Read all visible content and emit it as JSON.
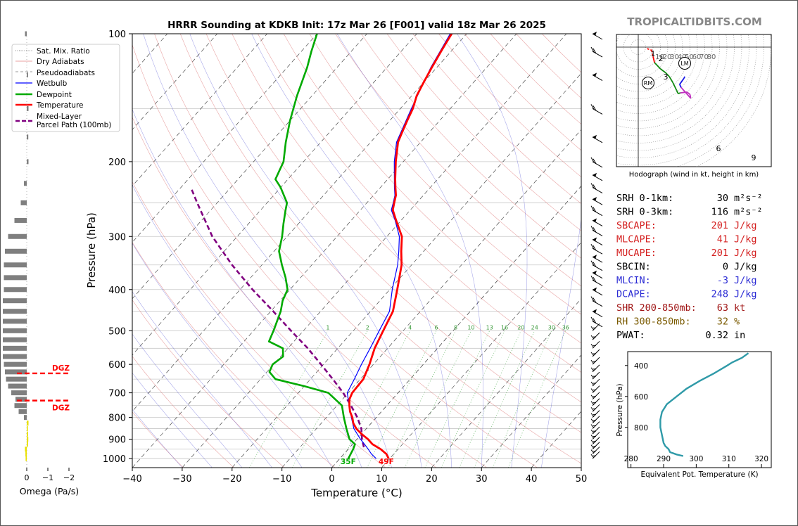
{
  "title": "HRRR Sounding at KDKB Init: 17z Mar 26 [F001] valid 18z Mar 26 2025",
  "brand": "TROPICALTIDBITS.COM",
  "colors": {
    "temp": "#ff0000",
    "dew": "#00aa00",
    "wetbulb": "#0000ff",
    "parcel": "#800080",
    "brand": "#888888"
  },
  "chart_data": {
    "type": "line",
    "subtype": "skew-T log-P sounding",
    "xlabel": "Temperature (°C)",
    "ylabel": "Pressure (hPa)",
    "xlim": [
      -40,
      50
    ],
    "ylim": [
      1050,
      100
    ],
    "x_ticks": [
      "−40",
      "−30",
      "−20",
      "−10",
      "0",
      "10",
      "20",
      "30",
      "40",
      "50"
    ],
    "y_ticks": [
      "100",
      "200",
      "300",
      "400",
      "500",
      "600",
      "700",
      "800",
      "900",
      "1000"
    ],
    "legend": {
      "position": "top-left",
      "entries": [
        "Sat. Mix. Ratio",
        "Dry Adiabats",
        "Pseudoadiabats",
        "Wetbulb",
        "Dewpoint",
        "Temperature",
        "Mixed-Layer\nParcel Path (100mb)"
      ]
    },
    "mixing_ratio_labels": [
      "1",
      "2",
      "4",
      "6",
      "8",
      "10",
      "13",
      "16",
      "20",
      "24",
      "30",
      "36"
    ],
    "surface_labels": {
      "dewpoint": "35F",
      "temperature": "49F"
    },
    "series": [
      {
        "name": "Temperature",
        "points": [
          [
            1000,
            9.8
          ],
          [
            975,
            8.5
          ],
          [
            950,
            6.5
          ],
          [
            925,
            4
          ],
          [
            900,
            2.2
          ],
          [
            875,
            0
          ],
          [
            850,
            -2
          ],
          [
            825,
            -3.6
          ],
          [
            800,
            -4.8
          ],
          [
            775,
            -6.3
          ],
          [
            750,
            -7.5
          ],
          [
            725,
            -8.6
          ],
          [
            700,
            -9.2
          ],
          [
            675,
            -9.3
          ],
          [
            650,
            -9.4
          ],
          [
            600,
            -10.8
          ],
          [
            550,
            -12.6
          ],
          [
            500,
            -14
          ],
          [
            450,
            -15.5
          ],
          [
            400,
            -18.5
          ],
          [
            350,
            -22
          ],
          [
            325,
            -24.5
          ],
          [
            300,
            -27
          ],
          [
            275,
            -31
          ],
          [
            260,
            -33.5
          ],
          [
            250,
            -34.5
          ],
          [
            240,
            -35.5
          ],
          [
            230,
            -37
          ],
          [
            220,
            -38.5
          ],
          [
            200,
            -41.5
          ],
          [
            180,
            -44.5
          ],
          [
            170,
            -45.5
          ],
          [
            160,
            -46.5
          ],
          [
            150,
            -47.5
          ],
          [
            140,
            -49
          ],
          [
            130,
            -50
          ],
          [
            120,
            -51
          ],
          [
            110,
            -52
          ],
          [
            105,
            -52.5
          ],
          [
            100,
            -53
          ]
        ]
      },
      {
        "name": "Dewpoint",
        "points": [
          [
            1000,
            1.7
          ],
          [
            985,
            1.5
          ],
          [
            950,
            1
          ],
          [
            925,
            0.5
          ],
          [
            900,
            -1.5
          ],
          [
            850,
            -4
          ],
          [
            800,
            -6.5
          ],
          [
            750,
            -9
          ],
          [
            700,
            -14
          ],
          [
            675,
            -20
          ],
          [
            650,
            -27
          ],
          [
            625,
            -29.5
          ],
          [
            600,
            -30.2
          ],
          [
            575,
            -29.5
          ],
          [
            550,
            -31
          ],
          [
            530,
            -35
          ],
          [
            500,
            -36
          ],
          [
            450,
            -38
          ],
          [
            425,
            -39.5
          ],
          [
            400,
            -40.5
          ],
          [
            375,
            -43
          ],
          [
            350,
            -46
          ],
          [
            325,
            -49
          ],
          [
            300,
            -51
          ],
          [
            280,
            -53
          ],
          [
            260,
            -55
          ],
          [
            250,
            -56
          ],
          [
            230,
            -60
          ],
          [
            220,
            -62.5
          ],
          [
            200,
            -64
          ],
          [
            180,
            -67
          ],
          [
            160,
            -70
          ],
          [
            140,
            -73
          ],
          [
            120,
            -76
          ],
          [
            110,
            -78
          ],
          [
            100,
            -80
          ]
        ]
      },
      {
        "name": "Wetbulb",
        "points": [
          [
            1000,
            7.3
          ],
          [
            975,
            5.5
          ],
          [
            950,
            4
          ],
          [
            925,
            2.4
          ],
          [
            900,
            0.7
          ],
          [
            850,
            -2.5
          ],
          [
            800,
            -5
          ],
          [
            750,
            -7.5
          ],
          [
            700,
            -10.2
          ],
          [
            650,
            -11.2
          ],
          [
            600,
            -12.4
          ],
          [
            550,
            -13.5
          ],
          [
            500,
            -14.8
          ],
          [
            450,
            -16.2
          ],
          [
            400,
            -19.5
          ],
          [
            350,
            -22.8
          ],
          [
            325,
            -25
          ],
          [
            300,
            -27.5
          ],
          [
            275,
            -31.2
          ],
          [
            260,
            -33.8
          ],
          [
            250,
            -34.7
          ],
          [
            240,
            -35.7
          ],
          [
            230,
            -37.2
          ],
          [
            200,
            -41.8
          ],
          [
            180,
            -44.8
          ],
          [
            150,
            -47.8
          ],
          [
            120,
            -51.2
          ],
          [
            100,
            -53.3
          ]
        ]
      },
      {
        "name": "Mixed-Layer Parcel Path (100mb)",
        "points": [
          [
            940,
            2.8
          ],
          [
            900,
            1
          ],
          [
            850,
            -1
          ],
          [
            800,
            -3.8
          ],
          [
            750,
            -7.2
          ],
          [
            700,
            -11
          ],
          [
            650,
            -15.5
          ],
          [
            600,
            -20.5
          ],
          [
            550,
            -26
          ],
          [
            500,
            -32.5
          ],
          [
            450,
            -39.5
          ],
          [
            400,
            -47.5
          ],
          [
            350,
            -56
          ],
          [
            300,
            -65
          ],
          [
            250,
            -74
          ],
          [
            230,
            -78
          ]
        ]
      }
    ],
    "omega_panel": {
      "xlabel": "Omega (Pa/s)",
      "x_ticks": [
        "0",
        "−1",
        "−2"
      ],
      "dgz_labels": [
        "DGZ",
        "DGZ"
      ],
      "dgz_bounds_hpa": [
        630,
        730
      ],
      "bars": [
        [
          1000,
          0.02
        ],
        [
          975,
          0.03
        ],
        [
          950,
          0.05
        ],
        [
          925,
          -0.03
        ],
        [
          900,
          -0.04
        ],
        [
          875,
          -0.03
        ],
        [
          850,
          -0.02
        ],
        [
          825,
          -0.05
        ],
        [
          800,
          0.1
        ],
        [
          775,
          0.35
        ],
        [
          750,
          0.55
        ],
        [
          725,
          0.5
        ],
        [
          700,
          0.7
        ],
        [
          675,
          0.85
        ],
        [
          650,
          0.95
        ],
        [
          625,
          1.0
        ],
        [
          600,
          1.05
        ],
        [
          575,
          1.1
        ],
        [
          550,
          1.1
        ],
        [
          525,
          1.1
        ],
        [
          500,
          1.1
        ],
        [
          475,
          1.1
        ],
        [
          450,
          1.1
        ],
        [
          425,
          1.1
        ],
        [
          400,
          1.05
        ],
        [
          375,
          1.05
        ],
        [
          350,
          1.05
        ],
        [
          325,
          1.0
        ],
        [
          300,
          0.85
        ],
        [
          275,
          0.55
        ],
        [
          250,
          0.25
        ],
        [
          225,
          0.1
        ],
        [
          200,
          -0.05
        ],
        [
          175,
          -0.04
        ],
        [
          150,
          -0.05
        ],
        [
          125,
          -0.03
        ],
        [
          100,
          0.05
        ]
      ]
    },
    "hodograph": {
      "caption": "Hodograph (wind in kt, height in km)",
      "ring_labels": [
        "10",
        "20",
        "30",
        "40",
        "50",
        "60",
        "70",
        "80"
      ],
      "markers": [
        "RM",
        "LM"
      ],
      "height_labels": [
        "1",
        "2",
        "3",
        "6",
        "9"
      ],
      "path": [
        [
          12,
          -2
        ],
        [
          18,
          -4
        ],
        [
          20,
          -12
        ],
        [
          22,
          -20
        ],
        [
          30,
          -28
        ],
        [
          37,
          -33
        ],
        [
          42,
          -38
        ],
        [
          47,
          -46
        ],
        [
          52,
          -56
        ],
        [
          54,
          -60
        ],
        [
          57,
          -59
        ],
        [
          66,
          -58
        ],
        [
          70,
          -61
        ],
        [
          71,
          -66
        ],
        [
          58,
          -52
        ],
        [
          56,
          -48
        ],
        [
          62,
          -40
        ],
        [
          63,
          -38
        ]
      ]
    },
    "theta_e_panel": {
      "xlabel": "Equivalent Pot. Temperature (K)",
      "ylabel": "Pressure (hPa)",
      "x_ticks": [
        "280",
        "290",
        "300",
        "310",
        "320"
      ],
      "y_ticks": [
        "400",
        "600",
        "800"
      ],
      "xlim": [
        279,
        323
      ],
      "ylim": [
        1060,
        310
      ],
      "points": [
        [
          985,
          296
        ],
        [
          975,
          294
        ],
        [
          960,
          292
        ],
        [
          940,
          291.5
        ],
        [
          920,
          290.5
        ],
        [
          900,
          290
        ],
        [
          850,
          289.5
        ],
        [
          800,
          289
        ],
        [
          750,
          289
        ],
        [
          700,
          289.5
        ],
        [
          650,
          291
        ],
        [
          600,
          294
        ],
        [
          550,
          297
        ],
        [
          500,
          301
        ],
        [
          450,
          305.5
        ],
        [
          400,
          309.5
        ],
        [
          380,
          311
        ],
        [
          350,
          314
        ],
        [
          320,
          316
        ]
      ]
    },
    "indices": [
      {
        "label": "SRH 0-1km:",
        "value": "30",
        "unit": "m²s⁻²",
        "color": "#000000"
      },
      {
        "label": "SRH 0-3km:",
        "value": "116",
        "unit": "m²s⁻²",
        "color": "#000000"
      },
      {
        "label": "SBCAPE:",
        "value": "201",
        "unit": "J/kg",
        "color": "#d42020"
      },
      {
        "label": "MLCAPE:",
        "value": "41",
        "unit": "J/kg",
        "color": "#d42020"
      },
      {
        "label": "MUCAPE:",
        "value": "201",
        "unit": "J/kg",
        "color": "#d42020"
      },
      {
        "label": "SBCIN:",
        "value": "0",
        "unit": "J/kg",
        "color": "#000000"
      },
      {
        "label": "MLCIN:",
        "value": "-3",
        "unit": "J/kg",
        "color": "#2a2ad4"
      },
      {
        "label": "DCAPE:",
        "value": "248",
        "unit": "J/kg",
        "color": "#2a2ad4"
      },
      {
        "label": "SHR 200-850mb:",
        "value": "63",
        "unit": "kt",
        "color": "#a01515"
      },
      {
        "label": "RH 300-850mb:",
        "value": "32",
        "unit": "%",
        "color": "#7a5a00"
      },
      {
        "label": "PWAT:",
        "value": "0.32",
        "unit": "in",
        "color": "#000000"
      }
    ]
  }
}
